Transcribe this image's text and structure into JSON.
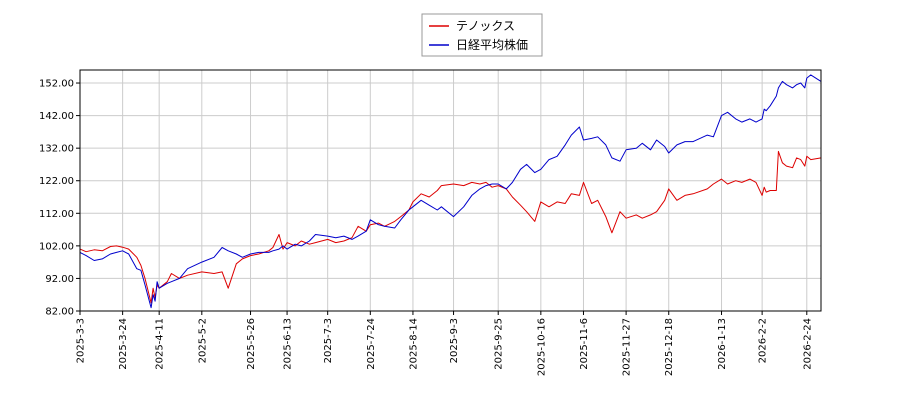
{
  "chart_data": {
    "type": "line",
    "title": "",
    "xlabel": "",
    "ylabel": "",
    "ylim": [
      82,
      156
    ],
    "yticks": [
      "82.00",
      "92.00",
      "102.00",
      "112.00",
      "122.00",
      "132.00",
      "142.00",
      "152.00"
    ],
    "xticks": [
      "2025-3-3",
      "2025-3-24",
      "2025-4-11",
      "2025-5-2",
      "2025-5-26",
      "2025-6-13",
      "2025-7-3",
      "2025-7-24",
      "2025-8-14",
      "2025-9-3",
      "2025-9-25",
      "2025-10-16",
      "2025-11-6",
      "2025-11-27",
      "2025-12-18",
      "2026-1-13",
      "2026-2-2",
      "2026-2-24"
    ],
    "grid": true,
    "legend": "top-center",
    "x_range": [
      "2025-3-3",
      "2026-3-3"
    ],
    "series": [
      {
        "name": "テノックス",
        "color": "#dd0000",
        "points": [
          [
            "2025-3-3",
            101.0
          ],
          [
            "2025-3-6",
            100.2
          ],
          [
            "2025-3-10",
            100.8
          ],
          [
            "2025-3-14",
            100.5
          ],
          [
            "2025-3-18",
            101.8
          ],
          [
            "2025-3-21",
            102.0
          ],
          [
            "2025-3-24",
            101.6
          ],
          [
            "2025-3-27",
            101.0
          ],
          [
            "2025-3-31",
            98.5
          ],
          [
            "2025-4-2",
            96.0
          ],
          [
            "2025-4-4",
            92.0
          ],
          [
            "2025-4-7",
            84.5
          ],
          [
            "2025-4-8",
            89.0
          ],
          [
            "2025-4-9",
            86.0
          ],
          [
            "2025-4-10",
            90.0
          ],
          [
            "2025-4-11",
            89.0
          ],
          [
            "2025-4-15",
            91.0
          ],
          [
            "2025-4-17",
            93.5
          ],
          [
            "2025-4-21",
            92.0
          ],
          [
            "2025-4-25",
            93.0
          ],
          [
            "2025-5-2",
            94.0
          ],
          [
            "2025-5-8",
            93.5
          ],
          [
            "2025-5-12",
            94.0
          ],
          [
            "2025-5-15",
            89.0
          ],
          [
            "2025-5-19",
            96.5
          ],
          [
            "2025-5-22",
            98.0
          ],
          [
            "2025-5-26",
            99.0
          ],
          [
            "2025-5-30",
            99.5
          ],
          [
            "2025-6-4",
            100.5
          ],
          [
            "2025-6-6",
            101.5
          ],
          [
            "2025-6-9",
            105.5
          ],
          [
            "2025-6-11",
            101.0
          ],
          [
            "2025-6-13",
            103.0
          ],
          [
            "2025-6-17",
            102.0
          ],
          [
            "2025-6-20",
            103.5
          ],
          [
            "2025-6-24",
            102.5
          ],
          [
            "2025-6-27",
            103.0
          ],
          [
            "2025-7-3",
            104.0
          ],
          [
            "2025-7-7",
            103.0
          ],
          [
            "2025-7-11",
            103.5
          ],
          [
            "2025-7-15",
            104.5
          ],
          [
            "2025-7-18",
            108.0
          ],
          [
            "2025-7-22",
            106.5
          ],
          [
            "2025-7-24",
            108.5
          ],
          [
            "2025-7-28",
            109.0
          ],
          [
            "2025-7-31",
            108.0
          ],
          [
            "2025-8-5",
            109.5
          ],
          [
            "2025-8-8",
            111.0
          ],
          [
            "2025-8-12",
            113.0
          ],
          [
            "2025-8-14",
            115.5
          ],
          [
            "2025-8-18",
            118.0
          ],
          [
            "2025-8-22",
            117.0
          ],
          [
            "2025-8-26",
            119.0
          ],
          [
            "2025-8-28",
            120.5
          ],
          [
            "2025-9-3",
            121.0
          ],
          [
            "2025-9-8",
            120.5
          ],
          [
            "2025-9-12",
            121.5
          ],
          [
            "2025-9-16",
            121.0
          ],
          [
            "2025-9-19",
            121.5
          ],
          [
            "2025-9-22",
            120.0
          ],
          [
            "2025-9-25",
            120.5
          ],
          [
            "2025-9-29",
            119.5
          ],
          [
            "2025-10-2",
            117.0
          ],
          [
            "2025-10-6",
            114.5
          ],
          [
            "2025-10-9",
            112.5
          ],
          [
            "2025-10-13",
            109.5
          ],
          [
            "2025-10-16",
            115.5
          ],
          [
            "2025-10-20",
            114.0
          ],
          [
            "2025-10-24",
            115.5
          ],
          [
            "2025-10-28",
            115.0
          ],
          [
            "2025-10-31",
            118.0
          ],
          [
            "2025-11-4",
            117.5
          ],
          [
            "2025-11-6",
            121.5
          ],
          [
            "2025-11-10",
            115.0
          ],
          [
            "2025-11-13",
            116.0
          ],
          [
            "2025-11-17",
            111.0
          ],
          [
            "2025-11-20",
            106.0
          ],
          [
            "2025-11-24",
            112.5
          ],
          [
            "2025-11-27",
            110.5
          ],
          [
            "2025-12-2",
            111.5
          ],
          [
            "2025-12-5",
            110.5
          ],
          [
            "2025-12-9",
            111.5
          ],
          [
            "2025-12-12",
            112.5
          ],
          [
            "2025-12-16",
            116.0
          ],
          [
            "2025-12-18",
            119.5
          ],
          [
            "2025-12-22",
            116.0
          ],
          [
            "2025-12-26",
            117.5
          ],
          [
            "2025-12-30",
            118.0
          ],
          [
            "2026-1-6",
            119.5
          ],
          [
            "2026-1-9",
            121.0
          ],
          [
            "2026-1-13",
            122.5
          ],
          [
            "2026-1-16",
            121.0
          ],
          [
            "2026-1-20",
            122.0
          ],
          [
            "2026-1-23",
            121.5
          ],
          [
            "2026-1-27",
            122.5
          ],
          [
            "2026-1-30",
            121.5
          ],
          [
            "2026-2-2",
            117.5
          ],
          [
            "2026-2-3",
            120.0
          ],
          [
            "2026-2-4",
            118.5
          ],
          [
            "2026-2-6",
            119.0
          ],
          [
            "2026-2-9",
            119.0
          ],
          [
            "2026-2-10",
            131.0
          ],
          [
            "2026-2-12",
            127.5
          ],
          [
            "2026-2-14",
            126.5
          ],
          [
            "2026-2-17",
            126.0
          ],
          [
            "2026-2-19",
            129.0
          ],
          [
            "2026-2-21",
            128.5
          ],
          [
            "2026-2-23",
            126.5
          ],
          [
            "2026-2-24",
            129.5
          ],
          [
            "2026-2-26",
            128.5
          ],
          [
            "2026-3-3",
            129.0
          ]
        ]
      },
      {
        "name": "日経平均株価",
        "color": "#0000cc",
        "points": [
          [
            "2025-3-3",
            100.0
          ],
          [
            "2025-3-6",
            99.0
          ],
          [
            "2025-3-10",
            97.5
          ],
          [
            "2025-3-14",
            98.0
          ],
          [
            "2025-3-18",
            99.5
          ],
          [
            "2025-3-21",
            100.0
          ],
          [
            "2025-3-24",
            100.5
          ],
          [
            "2025-3-27",
            99.5
          ],
          [
            "2025-3-31",
            95.0
          ],
          [
            "2025-4-2",
            94.5
          ],
          [
            "2025-4-4",
            90.0
          ],
          [
            "2025-4-7",
            83.0
          ],
          [
            "2025-4-8",
            87.0
          ],
          [
            "2025-4-9",
            85.0
          ],
          [
            "2025-4-10",
            91.0
          ],
          [
            "2025-4-11",
            89.0
          ],
          [
            "2025-4-15",
            90.5
          ],
          [
            "2025-4-17",
            91.0
          ],
          [
            "2025-4-21",
            92.0
          ],
          [
            "2025-4-25",
            95.0
          ],
          [
            "2025-5-2",
            97.0
          ],
          [
            "2025-5-8",
            98.5
          ],
          [
            "2025-5-12",
            101.5
          ],
          [
            "2025-5-15",
            100.5
          ],
          [
            "2025-5-19",
            99.5
          ],
          [
            "2025-5-22",
            98.5
          ],
          [
            "2025-5-26",
            99.5
          ],
          [
            "2025-5-30",
            100.0
          ],
          [
            "2025-6-4",
            100.0
          ],
          [
            "2025-6-6",
            100.5
          ],
          [
            "2025-6-9",
            101.0
          ],
          [
            "2025-6-11",
            102.0
          ],
          [
            "2025-6-13",
            101.0
          ],
          [
            "2025-6-17",
            102.5
          ],
          [
            "2025-6-20",
            102.0
          ],
          [
            "2025-6-24",
            103.5
          ],
          [
            "2025-6-27",
            105.5
          ],
          [
            "2025-7-3",
            105.0
          ],
          [
            "2025-7-7",
            104.5
          ],
          [
            "2025-7-11",
            105.0
          ],
          [
            "2025-7-15",
            104.0
          ],
          [
            "2025-7-18",
            105.0
          ],
          [
            "2025-7-22",
            106.5
          ],
          [
            "2025-7-24",
            110.0
          ],
          [
            "2025-7-28",
            108.5
          ],
          [
            "2025-7-31",
            108.0
          ],
          [
            "2025-8-5",
            107.5
          ],
          [
            "2025-8-8",
            110.0
          ],
          [
            "2025-8-12",
            113.0
          ],
          [
            "2025-8-14",
            114.0
          ],
          [
            "2025-8-18",
            116.0
          ],
          [
            "2025-8-22",
            114.5
          ],
          [
            "2025-8-26",
            113.0
          ],
          [
            "2025-8-28",
            114.0
          ],
          [
            "2025-9-3",
            111.0
          ],
          [
            "2025-9-8",
            114.0
          ],
          [
            "2025-9-12",
            117.5
          ],
          [
            "2025-9-16",
            119.5
          ],
          [
            "2025-9-19",
            120.5
          ],
          [
            "2025-9-22",
            121.0
          ],
          [
            "2025-9-25",
            121.0
          ],
          [
            "2025-9-29",
            119.5
          ],
          [
            "2025-10-2",
            121.5
          ],
          [
            "2025-10-6",
            125.5
          ],
          [
            "2025-10-9",
            127.0
          ],
          [
            "2025-10-13",
            124.5
          ],
          [
            "2025-10-16",
            125.5
          ],
          [
            "2025-10-20",
            128.5
          ],
          [
            "2025-10-24",
            129.5
          ],
          [
            "2025-10-28",
            133.0
          ],
          [
            "2025-10-31",
            136.0
          ],
          [
            "2025-11-4",
            138.5
          ],
          [
            "2025-11-6",
            134.5
          ],
          [
            "2025-11-10",
            135.0
          ],
          [
            "2025-11-13",
            135.5
          ],
          [
            "2025-11-17",
            133.0
          ],
          [
            "2025-11-20",
            129.0
          ],
          [
            "2025-11-24",
            128.0
          ],
          [
            "2025-11-27",
            131.5
          ],
          [
            "2025-12-2",
            132.0
          ],
          [
            "2025-12-5",
            133.5
          ],
          [
            "2025-12-9",
            131.5
          ],
          [
            "2025-12-12",
            134.5
          ],
          [
            "2025-12-16",
            132.5
          ],
          [
            "2025-12-18",
            130.5
          ],
          [
            "2025-12-22",
            133.0
          ],
          [
            "2025-12-26",
            134.0
          ],
          [
            "2025-12-30",
            134.0
          ],
          [
            "2026-1-6",
            136.0
          ],
          [
            "2026-1-9",
            135.5
          ],
          [
            "2026-1-13",
            142.0
          ],
          [
            "2026-1-16",
            143.0
          ],
          [
            "2026-1-20",
            141.0
          ],
          [
            "2026-1-23",
            140.0
          ],
          [
            "2026-1-27",
            141.0
          ],
          [
            "2026-1-30",
            140.0
          ],
          [
            "2026-2-2",
            141.0
          ],
          [
            "2026-2-3",
            144.0
          ],
          [
            "2026-2-4",
            143.5
          ],
          [
            "2026-2-6",
            145.0
          ],
          [
            "2026-2-9",
            148.0
          ],
          [
            "2026-2-10",
            150.5
          ],
          [
            "2026-2-12",
            152.5
          ],
          [
            "2026-2-14",
            151.5
          ],
          [
            "2026-2-17",
            150.5
          ],
          [
            "2026-2-19",
            151.5
          ],
          [
            "2026-2-21",
            152.0
          ],
          [
            "2026-2-23",
            150.5
          ],
          [
            "2026-2-24",
            153.5
          ],
          [
            "2026-2-26",
            154.5
          ],
          [
            "2026-3-3",
            152.5
          ]
        ]
      }
    ]
  }
}
